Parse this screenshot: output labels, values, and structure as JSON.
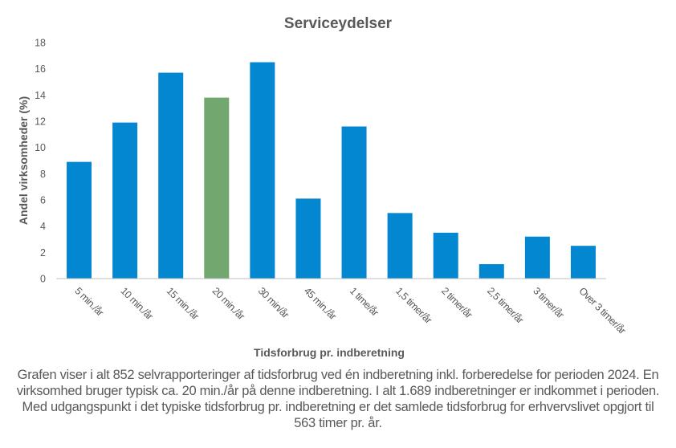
{
  "chart_data": {
    "type": "bar",
    "title": "Serviceydelser",
    "xlabel": "Tidsforbrug pr. indberetning",
    "ylabel": "Andel virksomheder  (%)",
    "categories": [
      "5 min./år",
      "10 min./år",
      "15 min./år",
      "20 min./år",
      "30 min/år",
      "45 min./år",
      "1 time/år",
      "1,5 timer/år",
      "2 timer/år",
      "2,5 timer/år",
      "3 timer/år",
      "Over 3 timer/år"
    ],
    "values": [
      8.9,
      11.9,
      15.7,
      13.8,
      16.5,
      6.1,
      11.6,
      5.0,
      3.5,
      1.1,
      3.2,
      2.5
    ],
    "highlight_index": 3,
    "ylim": [
      0,
      18
    ],
    "yticks": [
      0,
      2,
      4,
      6,
      8,
      10,
      12,
      14,
      16,
      18
    ],
    "grid": false,
    "legend": "none",
    "colors": {
      "bar": "#0287d0",
      "highlight": "#72a86f",
      "text": "#595959",
      "axis": "#bfbfbf"
    }
  },
  "caption": "Grafen viser i alt 852 selvrapporteringer af tidsforbrug  ved én indberetning inkl. forberedelse for perioden 2024. En virksomhed bruger typisk  ca. 20 min./år på denne indberetning. I alt 1.689 indberetninger er indkommet i perioden. Med udgangspunkt i det typiske tidsforbrug  pr. indberetning er det samlede tidsforbrug for erhvervslivet  opgjort til 563 timer pr. år."
}
